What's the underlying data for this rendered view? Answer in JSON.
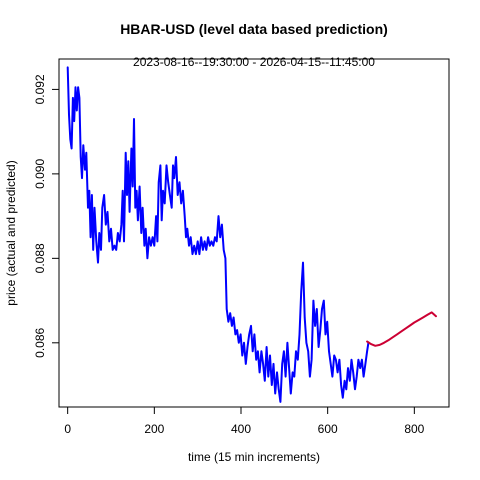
{
  "chart_data": {
    "type": "line",
    "title": "HBAR-USD (level data based prediction)",
    "subtitle": "2023-08-16--19:30:00  -  2026-04-15--11:45:00",
    "xlabel": "time (15 min increments)",
    "ylabel": "price (actual and predicted)",
    "xlim": [
      -20,
      880
    ],
    "ylim": [
      0.08448,
      0.09272
    ],
    "xticks": [
      0,
      200,
      400,
      600,
      800
    ],
    "xtick_labels": [
      "0",
      "200",
      "400",
      "600",
      "800"
    ],
    "yticks": [
      0.086,
      0.088,
      0.09,
      0.092
    ],
    "ytick_labels": [
      "0.086",
      "0.088",
      "0.090",
      "0.092"
    ],
    "grid": false,
    "series": [
      {
        "role": "actual",
        "color": "#0000ff",
        "points": [
          [
            0,
            0.09252
          ],
          [
            3,
            0.0914
          ],
          [
            6,
            0.09082
          ],
          [
            9,
            0.0906
          ],
          [
            12,
            0.0918
          ],
          [
            15,
            0.09125
          ],
          [
            18,
            0.09205
          ],
          [
            21,
            0.0915
          ],
          [
            24,
            0.09205
          ],
          [
            27,
            0.0918
          ],
          [
            30,
            0.0904
          ],
          [
            33,
            0.0899
          ],
          [
            36,
            0.09068
          ],
          [
            40,
            0.0901
          ],
          [
            43,
            0.0905
          ],
          [
            47,
            0.0892
          ],
          [
            50,
            0.0896
          ],
          [
            53,
            0.0885
          ],
          [
            56,
            0.0895
          ],
          [
            59,
            0.0882
          ],
          [
            62,
            0.0892
          ],
          [
            66,
            0.0884
          ],
          [
            70,
            0.0879
          ],
          [
            73,
            0.0886
          ],
          [
            77,
            0.0882
          ],
          [
            80,
            0.0892
          ],
          [
            84,
            0.0895
          ],
          [
            88,
            0.0888
          ],
          [
            92,
            0.0891
          ],
          [
            96,
            0.0884
          ],
          [
            100,
            0.0887
          ],
          [
            104,
            0.0882
          ],
          [
            108,
            0.0883
          ],
          [
            112,
            0.0882
          ],
          [
            116,
            0.0886
          ],
          [
            120,
            0.0884
          ],
          [
            124,
            0.0888
          ],
          [
            127,
            0.0896
          ],
          [
            130,
            0.0884
          ],
          [
            134,
            0.0905
          ],
          [
            137,
            0.0895
          ],
          [
            140,
            0.0903
          ],
          [
            143,
            0.0891
          ],
          [
            147,
            0.0906
          ],
          [
            150,
            0.0897
          ],
          [
            153,
            0.0913
          ],
          [
            156,
            0.0892
          ],
          [
            159,
            0.0896
          ],
          [
            162,
            0.0889
          ],
          [
            166,
            0.0897
          ],
          [
            170,
            0.0886
          ],
          [
            173,
            0.0892
          ],
          [
            177,
            0.0883
          ],
          [
            180,
            0.0887
          ],
          [
            184,
            0.088
          ],
          [
            188,
            0.0885
          ],
          [
            192,
            0.0883
          ],
          [
            196,
            0.0885
          ],
          [
            200,
            0.0883
          ],
          [
            204,
            0.089
          ],
          [
            207,
            0.0884
          ],
          [
            210,
            0.0898
          ],
          [
            214,
            0.0902
          ],
          [
            217,
            0.0889
          ],
          [
            220,
            0.0896
          ],
          [
            224,
            0.0893
          ],
          [
            228,
            0.0902
          ],
          [
            232,
            0.0898
          ],
          [
            236,
            0.0895
          ],
          [
            240,
            0.0892
          ],
          [
            243,
            0.0902
          ],
          [
            246,
            0.0899
          ],
          [
            250,
            0.0904
          ],
          [
            254,
            0.0895
          ],
          [
            258,
            0.0898
          ],
          [
            262,
            0.0893
          ],
          [
            266,
            0.0896
          ],
          [
            270,
            0.089
          ],
          [
            273,
            0.0885
          ],
          [
            276,
            0.0887
          ],
          [
            280,
            0.0883
          ],
          [
            284,
            0.0885
          ],
          [
            288,
            0.0881
          ],
          [
            292,
            0.0883
          ],
          [
            296,
            0.0881
          ],
          [
            300,
            0.0884
          ],
          [
            304,
            0.0881
          ],
          [
            308,
            0.0885
          ],
          [
            312,
            0.0882
          ],
          [
            316,
            0.0884
          ],
          [
            320,
            0.0882
          ],
          [
            324,
            0.0885
          ],
          [
            328,
            0.0883
          ],
          [
            332,
            0.0884
          ],
          [
            336,
            0.0883
          ],
          [
            340,
            0.0885
          ],
          [
            344,
            0.0884
          ],
          [
            348,
            0.089
          ],
          [
            352,
            0.0885
          ],
          [
            356,
            0.0888
          ],
          [
            360,
            0.0882
          ],
          [
            364,
            0.088
          ],
          [
            367,
            0.0868
          ],
          [
            371,
            0.0865
          ],
          [
            375,
            0.0867
          ],
          [
            379,
            0.0864
          ],
          [
            383,
            0.0866
          ],
          [
            387,
            0.0862
          ],
          [
            391,
            0.0863
          ],
          [
            395,
            0.086
          ],
          [
            399,
            0.0862
          ],
          [
            403,
            0.0857
          ],
          [
            407,
            0.086
          ],
          [
            411,
            0.0855
          ],
          [
            415,
            0.0859
          ],
          [
            419,
            0.0862
          ],
          [
            423,
            0.0864
          ],
          [
            427,
            0.0858
          ],
          [
            431,
            0.0862
          ],
          [
            435,
            0.0856
          ],
          [
            439,
            0.0858
          ],
          [
            443,
            0.0853
          ],
          [
            447,
            0.0858
          ],
          [
            451,
            0.0855
          ],
          [
            455,
            0.0851
          ],
          [
            459,
            0.0859
          ],
          [
            463,
            0.0852
          ],
          [
            467,
            0.0857
          ],
          [
            471,
            0.085
          ],
          [
            475,
            0.0855
          ],
          [
            479,
            0.0848
          ],
          [
            483,
            0.0853
          ],
          [
            487,
            0.0849
          ],
          [
            491,
            0.0846
          ],
          [
            495,
            0.0855
          ],
          [
            499,
            0.0858
          ],
          [
            503,
            0.0852
          ],
          [
            507,
            0.086
          ],
          [
            511,
            0.0854
          ],
          [
            515,
            0.0848
          ],
          [
            519,
            0.0853
          ],
          [
            523,
            0.0852
          ],
          [
            527,
            0.0858
          ],
          [
            531,
            0.0856
          ],
          [
            535,
            0.0862
          ],
          [
            539,
            0.0872
          ],
          [
            543,
            0.0879
          ],
          [
            547,
            0.0866
          ],
          [
            551,
            0.086
          ],
          [
            555,
            0.0858
          ],
          [
            559,
            0.0852
          ],
          [
            563,
            0.0856
          ],
          [
            567,
            0.087
          ],
          [
            571,
            0.0864
          ],
          [
            575,
            0.0868
          ],
          [
            579,
            0.0859
          ],
          [
            583,
            0.0863
          ],
          [
            587,
            0.0868
          ],
          [
            591,
            0.087
          ],
          [
            595,
            0.0862
          ],
          [
            599,
            0.0865
          ],
          [
            603,
            0.0858
          ],
          [
            607,
            0.0855
          ],
          [
            611,
            0.0852
          ],
          [
            615,
            0.0857
          ],
          [
            619,
            0.0856
          ],
          [
            623,
            0.0853
          ],
          [
            627,
            0.0856
          ],
          [
            631,
            0.085
          ],
          [
            635,
            0.0847
          ],
          [
            639,
            0.0851
          ],
          [
            643,
            0.0849
          ],
          [
            647,
            0.0854
          ],
          [
            651,
            0.0851
          ],
          [
            655,
            0.0856
          ],
          [
            659,
            0.0853
          ],
          [
            663,
            0.0849
          ],
          [
            667,
            0.0852
          ],
          [
            671,
            0.0856
          ],
          [
            675,
            0.0854
          ],
          [
            679,
            0.0856
          ],
          [
            683,
            0.0852
          ],
          [
            687,
            0.0855
          ],
          [
            691,
            0.0858
          ],
          [
            694,
            0.086
          ]
        ]
      },
      {
        "role": "predicted",
        "color": "#cc0033",
        "points": [
          [
            691,
            0.08603
          ],
          [
            700,
            0.08597
          ],
          [
            710,
            0.08593
          ],
          [
            720,
            0.08595
          ],
          [
            730,
            0.086
          ],
          [
            740,
            0.08606
          ],
          [
            750,
            0.08613
          ],
          [
            760,
            0.0862
          ],
          [
            770,
            0.08627
          ],
          [
            780,
            0.08634
          ],
          [
            790,
            0.08641
          ],
          [
            800,
            0.08648
          ],
          [
            810,
            0.08654
          ],
          [
            820,
            0.0866
          ],
          [
            830,
            0.08666
          ],
          [
            840,
            0.08672
          ],
          [
            850,
            0.08663
          ]
        ]
      }
    ]
  }
}
